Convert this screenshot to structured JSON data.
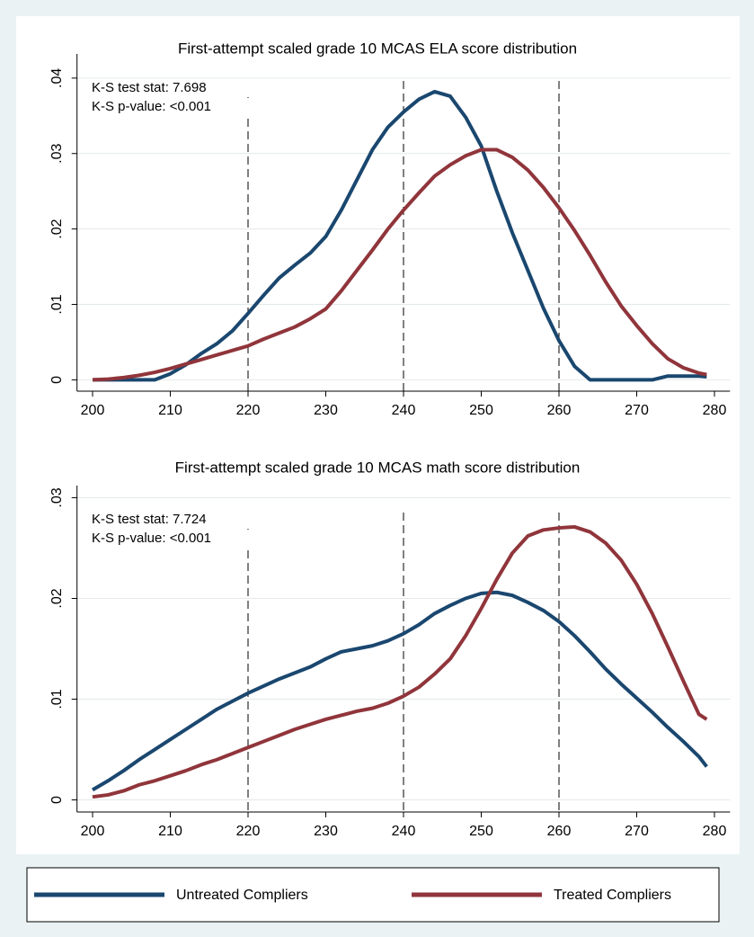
{
  "chart_data": [
    {
      "type": "line",
      "title": "First-attempt scaled grade 10 MCAS ELA score distribution",
      "annotations": [
        "K-S test stat: 7.698",
        "K-S p-value: <0.001"
      ],
      "x": [
        200,
        202,
        204,
        206,
        208,
        210,
        212,
        214,
        216,
        218,
        220,
        222,
        224,
        226,
        228,
        230,
        232,
        234,
        236,
        238,
        240,
        242,
        244,
        246,
        248,
        250,
        252,
        254,
        256,
        258,
        260,
        262,
        264,
        266,
        268,
        270,
        272,
        274,
        276,
        278,
        279
      ],
      "series": [
        {
          "name": "Untreated Compliers",
          "color": "#1a476f",
          "values": [
            0,
            0,
            0,
            0,
            0,
            0.0008,
            0.002,
            0.0035,
            0.0048,
            0.0065,
            0.0088,
            0.0112,
            0.0135,
            0.0152,
            0.0168,
            0.019,
            0.0225,
            0.0265,
            0.0305,
            0.0335,
            0.0355,
            0.0372,
            0.0382,
            0.0376,
            0.0348,
            0.031,
            0.025,
            0.0195,
            0.0145,
            0.0095,
            0.0052,
            0.0018,
            0,
            0,
            0,
            0,
            0,
            0.0005,
            0.0005,
            0.0005,
            0.0004
          ]
        },
        {
          "name": "Treated Compliers",
          "color": "#90353b",
          "values": [
            0,
            0.0001,
            0.0003,
            0.0006,
            0.001,
            0.0015,
            0.0021,
            0.0027,
            0.0033,
            0.0039,
            0.0045,
            0.0054,
            0.0062,
            0.007,
            0.0081,
            0.0094,
            0.0118,
            0.0145,
            0.0172,
            0.02,
            0.0225,
            0.0248,
            0.027,
            0.0285,
            0.0297,
            0.0305,
            0.0305,
            0.0295,
            0.0278,
            0.0255,
            0.0228,
            0.0198,
            0.0165,
            0.013,
            0.0098,
            0.0072,
            0.0048,
            0.0028,
            0.0016,
            0.0009,
            0.0007
          ]
        }
      ],
      "xlim": [
        198,
        282
      ],
      "xticks": [
        200,
        210,
        220,
        230,
        240,
        250,
        260,
        270,
        280
      ],
      "ylim": [
        -0.0015,
        0.0432
      ],
      "yticks": [
        0,
        {
          "value": 0.01,
          "label": ".01"
        },
        {
          "value": 0.02,
          "label": ".02"
        },
        {
          "value": 0.03,
          "label": ".03"
        },
        {
          "value": 0.04,
          "label": ".04"
        }
      ],
      "xlines": [
        220,
        240,
        260
      ],
      "grid": true,
      "legend": "bottom"
    },
    {
      "type": "line",
      "title": "First-attempt scaled grade 10 MCAS math score distribution",
      "annotations": [
        "K-S test stat: 7.724",
        "K-S p-value: <0.001"
      ],
      "x": [
        200,
        202,
        204,
        206,
        208,
        210,
        212,
        214,
        216,
        218,
        220,
        222,
        224,
        226,
        228,
        230,
        232,
        234,
        236,
        238,
        240,
        242,
        244,
        246,
        248,
        250,
        252,
        254,
        256,
        258,
        260,
        262,
        264,
        266,
        268,
        270,
        272,
        274,
        276,
        278,
        279
      ],
      "series": [
        {
          "name": "Untreated Compliers",
          "color": "#1a476f",
          "values": [
            0.001,
            0.0019,
            0.0029,
            0.004,
            0.005,
            0.006,
            0.007,
            0.008,
            0.009,
            0.0098,
            0.0106,
            0.0113,
            0.012,
            0.0126,
            0.0132,
            0.014,
            0.0147,
            0.015,
            0.0153,
            0.0158,
            0.0165,
            0.0174,
            0.0185,
            0.0193,
            0.02,
            0.0205,
            0.0206,
            0.0203,
            0.0196,
            0.0188,
            0.0177,
            0.0163,
            0.0147,
            0.013,
            0.0115,
            0.0101,
            0.0087,
            0.0072,
            0.0058,
            0.0043,
            0.0033
          ]
        },
        {
          "name": "Treated Compliers",
          "color": "#90353b",
          "values": [
            0.0003,
            0.0005,
            0.0009,
            0.0015,
            0.0019,
            0.0024,
            0.0029,
            0.0035,
            0.004,
            0.0046,
            0.0052,
            0.0058,
            0.0064,
            0.007,
            0.0075,
            0.008,
            0.0084,
            0.0088,
            0.0091,
            0.0096,
            0.0103,
            0.0112,
            0.0125,
            0.014,
            0.0163,
            0.019,
            0.0219,
            0.0245,
            0.0262,
            0.0268,
            0.027,
            0.0271,
            0.0266,
            0.0255,
            0.0238,
            0.0214,
            0.0185,
            0.0152,
            0.0118,
            0.0085,
            0.008
          ]
        }
      ],
      "xlim": [
        198,
        282
      ],
      "xticks": [
        200,
        210,
        220,
        230,
        240,
        250,
        260,
        270,
        280
      ],
      "ylim": [
        -0.0012,
        0.0312
      ],
      "yticks": [
        0,
        {
          "value": 0.01,
          "label": ".01"
        },
        {
          "value": 0.02,
          "label": ".02"
        },
        {
          "value": 0.03,
          "label": ".03"
        }
      ],
      "xlines": [
        220,
        240,
        260
      ],
      "grid": true
    }
  ]
}
